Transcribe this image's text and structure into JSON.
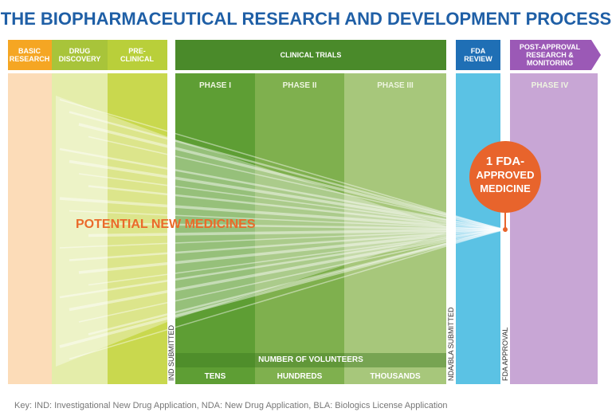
{
  "header": {
    "title": "THE BIOPHARMACEUTICAL RESEARCH AND DEVELOPMENT PROCESS"
  },
  "stages": [
    {
      "label_lines": [
        "BASIC",
        "RESEARCH"
      ]
    },
    {
      "label_lines": [
        "DRUG",
        "DISCOVERY"
      ]
    },
    {
      "label_lines": [
        "PRE-",
        "CLINICAL"
      ]
    },
    {
      "label_lines": [
        "CLINICAL TRIALS"
      ]
    },
    {
      "label_lines": [
        "FDA",
        "REVIEW"
      ]
    },
    {
      "label_lines": [
        "POST-APPROVAL",
        "RESEARCH &",
        "MONITORING"
      ]
    }
  ],
  "phases": [
    "PHASE I",
    "PHASE II",
    "PHASE III",
    "PHASE IV"
  ],
  "milestones": [
    "IND SUBMITTED",
    "NDA/BLA SUBMITTED",
    "FDA APPROVAL"
  ],
  "funnel_label": "POTENTIAL NEW MEDICINES",
  "result_lines": [
    "1 FDA-",
    "APPROVED",
    "MEDICINE"
  ],
  "volunteers": {
    "title": "NUMBER OF VOLUNTEERS",
    "levels": [
      "TENS",
      "HUNDREDS",
      "THOUSANDS"
    ]
  },
  "key": "Key: IND: Investigational New Drug Application, NDA: New Drug Application, BLA: Biologics License Application"
}
